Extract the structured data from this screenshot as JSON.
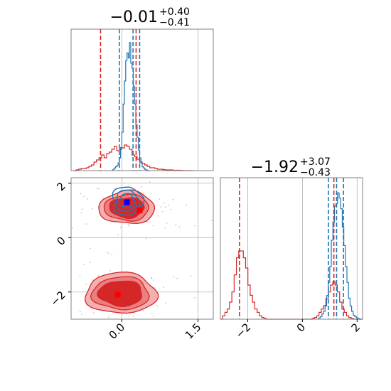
{
  "chart_data": {
    "type": "corner",
    "colors": {
      "red": "#d62728",
      "blue": "#1f77b4",
      "red_marker": "#ff0000",
      "blue_marker": "#0000ff",
      "grid": "#b0b0b0"
    },
    "params": [
      {
        "title_main": "−0.01",
        "title_sup": "+0.40",
        "title_sub": "−0.41",
        "range": [
          -1.0,
          1.8
        ],
        "ticks": [
          0.0,
          1.5
        ],
        "tick_labels": [
          "0.0",
          "1.5"
        ],
        "red_quantiles": [
          -0.42,
          0.28
        ],
        "blue_quantiles": [
          -0.05,
          0.22,
          0.35
        ],
        "blue_hist": {
          "x_start": -0.2,
          "x_end": 0.55,
          "values": [
            0,
            1,
            2,
            3,
            4,
            6,
            10,
            18,
            30,
            52,
            70,
            86,
            92,
            88,
            100,
            84,
            80,
            66,
            52,
            36,
            26,
            16,
            10,
            6,
            3,
            2,
            1,
            0.5,
            0,
            0
          ]
        },
        "red_hist": {
          "x_start": -0.95,
          "x_end": 1.4,
          "values": [
            0,
            1,
            2,
            3,
            3,
            4,
            6,
            8,
            12,
            15,
            18,
            22,
            18,
            24,
            26,
            30,
            34,
            28,
            30,
            32,
            36,
            34,
            30,
            22,
            20,
            16,
            12,
            10,
            8,
            6,
            4,
            4,
            3,
            2,
            2,
            1.5,
            1,
            1,
            1,
            0.5,
            0.5,
            0.5,
            0.3,
            0,
            0,
            0,
            0
          ]
        }
      },
      {
        "title_main": "−1.92",
        "title_sup": "+3.07",
        "title_sub": "−0.43",
        "range": [
          -3.0,
          2.2
        ],
        "ticks": [
          -2,
          0,
          2
        ],
        "tick_labels": [
          "−2",
          "0",
          "2"
        ],
        "red_quantiles": [
          -2.3,
          1.15
        ],
        "blue_quantiles": [
          0.95,
          1.25,
          1.5
        ],
        "blue_hist": {
          "x_start": 0.6,
          "x_end": 2.2,
          "values": [
            1,
            2,
            4,
            6,
            10,
            18,
            28,
            40,
            60,
            74,
            86,
            88,
            96,
            92,
            84,
            70,
            56,
            40,
            28,
            16,
            10,
            6,
            3,
            2,
            1,
            0.5,
            0,
            0
          ]
        },
        "red_hist": {
          "x_start": -3.0,
          "x_end": 2.2,
          "values": [
            0,
            2,
            4,
            6,
            10,
            16,
            26,
            36,
            40,
            40,
            36,
            30,
            20,
            14,
            10,
            6,
            4,
            2,
            1,
            0.5,
            0,
            0,
            0,
            0,
            0,
            0,
            0,
            0,
            0,
            0,
            0,
            0,
            0,
            0,
            0,
            0,
            0,
            0,
            0,
            0,
            0.5,
            1,
            2,
            4,
            6,
            8,
            12,
            16,
            20,
            22,
            20,
            16,
            10,
            6,
            4,
            2,
            1,
            0.5,
            0,
            0,
            0,
            0
          ]
        }
      }
    ],
    "joint": {
      "x_param": 0,
      "y_param": 1,
      "y_range": [
        -3.0,
        2.2
      ],
      "y_ticks": [
        -2,
        0,
        2
      ],
      "y_tick_labels": [
        "−2",
        "0",
        "2"
      ],
      "red_modes": [
        {
          "cx": -0.02,
          "cy": -2.05,
          "rx": 0.7,
          "ry": 0.75
        },
        {
          "cx": 0.1,
          "cy": 1.1,
          "rx": 0.55,
          "ry": 0.6
        }
      ],
      "blue_mode": {
        "cx": 0.1,
        "cy": 1.35,
        "rx": 0.3,
        "ry": 0.52
      },
      "red_markers": [
        {
          "x": 0.35,
          "y": 1.0
        },
        {
          "x": -0.08,
          "y": -2.1
        }
      ],
      "blue_marker": {
        "x": 0.1,
        "y": 1.3
      }
    }
  }
}
